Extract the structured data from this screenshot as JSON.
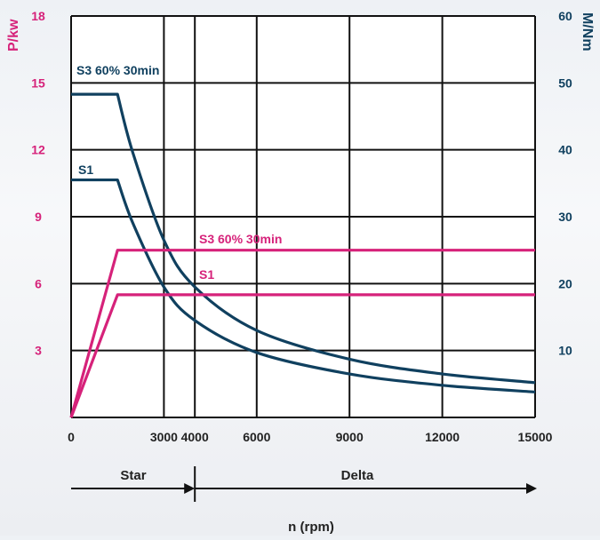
{
  "colors": {
    "power": "#d6227a",
    "torque": "#10405f",
    "grid": "#111111",
    "background": "#ffffff"
  },
  "chart_data": {
    "type": "line",
    "x_label": "n (rpm)",
    "left_axis_label": "P/kw",
    "right_axis_label": "M/Nm",
    "x_ticks": [
      "0",
      "3000",
      "4000",
      "6000",
      "9000",
      "12000",
      "15000"
    ],
    "left_ticks": [
      "3",
      "6",
      "9",
      "12",
      "15",
      "18"
    ],
    "right_ticks": [
      "10",
      "20",
      "30",
      "40",
      "50",
      "60"
    ],
    "xlim": [
      0,
      15000
    ],
    "left_ylim": [
      0,
      18
    ],
    "right_ylim": [
      0,
      60
    ],
    "grid": true,
    "series": [
      {
        "name": "S3 60% 30min",
        "axis": "right",
        "color": "#10405f",
        "points": [
          [
            0,
            48.3
          ],
          [
            1500,
            48.3
          ],
          [
            2000,
            39.5
          ],
          [
            3000,
            26.5
          ],
          [
            4000,
            19.5
          ],
          [
            6000,
            13.0
          ],
          [
            9000,
            8.7
          ],
          [
            12000,
            6.5
          ],
          [
            15000,
            5.2
          ]
        ]
      },
      {
        "name": "S1",
        "axis": "right",
        "color": "#10405f",
        "points": [
          [
            0,
            35.5
          ],
          [
            1500,
            35.5
          ],
          [
            2000,
            29.0
          ],
          [
            3000,
            19.5
          ],
          [
            4000,
            14.5
          ],
          [
            6000,
            9.7
          ],
          [
            9000,
            6.5
          ],
          [
            12000,
            4.8
          ],
          [
            15000,
            3.8
          ]
        ]
      },
      {
        "name": "S3 60% 30min",
        "axis": "left",
        "color": "#d6227a",
        "points": [
          [
            0,
            0
          ],
          [
            1500,
            7.5
          ],
          [
            15000,
            7.5
          ]
        ]
      },
      {
        "name": "S1",
        "axis": "left",
        "color": "#d6227a",
        "points": [
          [
            0,
            0
          ],
          [
            1500,
            5.5
          ],
          [
            15000,
            5.5
          ]
        ]
      }
    ],
    "regions": {
      "star_label": "Star",
      "delta_label": "Delta",
      "boundary_rpm": 4000
    }
  }
}
